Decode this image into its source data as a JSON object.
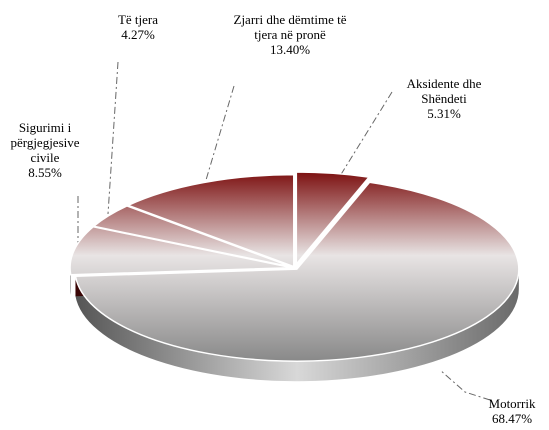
{
  "chart_data": {
    "type": "pie",
    "categories": [
      "Aksidente dhe Shëndeti",
      "Motorrik",
      "Sigurimi i përgjegjesive civile",
      "Të tjera",
      "Zjarri dhe dëmtime të tjera në pronë"
    ],
    "values": [
      5.31,
      68.47,
      8.55,
      4.27,
      13.4
    ],
    "value_labels": [
      "5.31%",
      "68.47%",
      "8.55%",
      "4.27%",
      "13.40%"
    ],
    "color": "#7a0c0c"
  }
}
